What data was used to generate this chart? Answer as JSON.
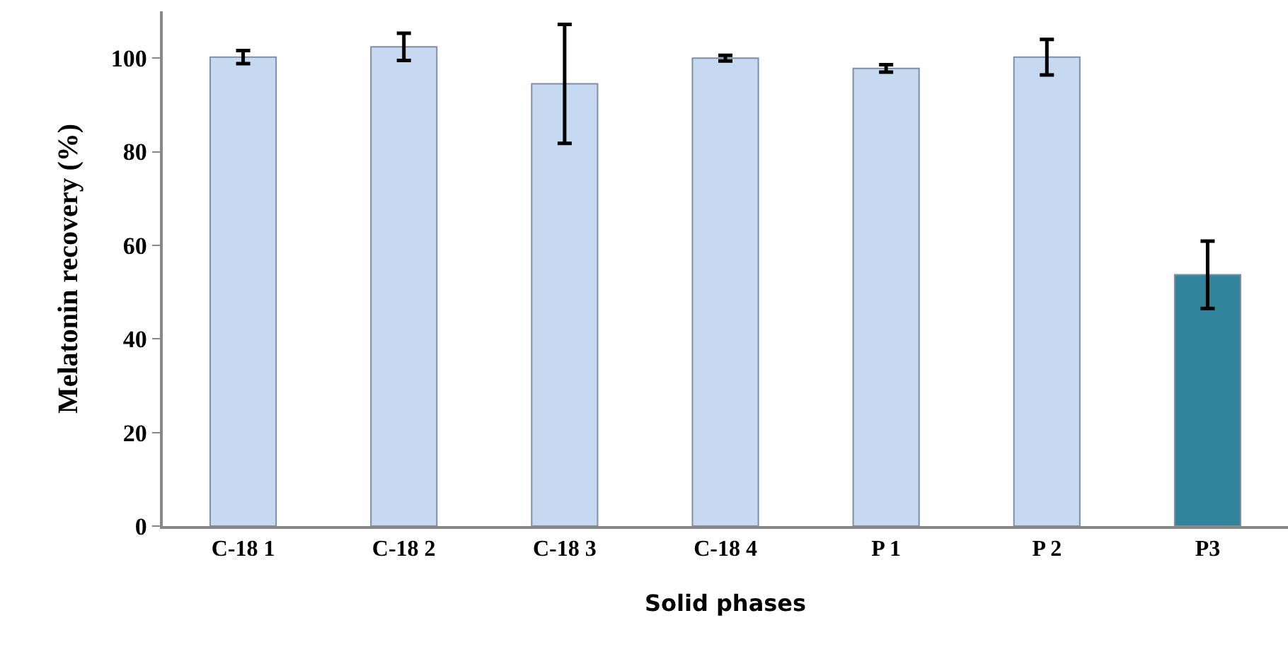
{
  "chart_data": {
    "type": "bar",
    "categories": [
      "C-18 1",
      "C-18 2",
      "C-18 3",
      "C-18 4",
      "P 1",
      "P 2",
      "P3"
    ],
    "values": [
      100.2,
      102.4,
      94.5,
      100,
      97.8,
      100.2,
      53.7
    ],
    "errors": [
      1.4,
      2.9,
      12.7,
      0.6,
      0.8,
      3.8,
      7.2
    ],
    "colors": [
      "#c6d9f1",
      "#c6d9f1",
      "#c6d9f1",
      "#c6d9f1",
      "#c6d9f1",
      "#c6d9f1",
      "#31849b"
    ],
    "xlabel": "Solid phases",
    "ylabel": "Melatonin recovery (%)",
    "ylim": [
      0,
      110
    ],
    "yticks": [
      0,
      20,
      40,
      60,
      80,
      100
    ],
    "grid": false
  }
}
